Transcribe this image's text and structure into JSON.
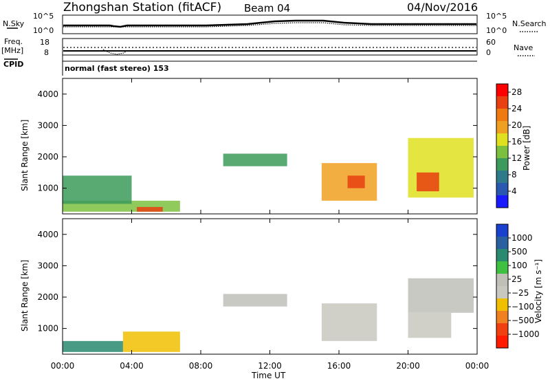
{
  "header": {
    "station": "Zhongshan Station (fitACF)",
    "beam": "Beam 04",
    "date": "04/Nov/2016"
  },
  "top_panel_labels": {
    "nsky": "N.Sky",
    "nsky_top": "10^5",
    "nsky_bottom": "10^0",
    "nsearch": "N.Search",
    "nsearch_top": "10^5",
    "nsearch_bottom": "10^0",
    "freq_label": "Freq.",
    "freq_unit": "[MHz]",
    "freq_top": "18",
    "freq_bottom": "8",
    "nave": "Nave",
    "nave_top": "60",
    "nave_bottom": "0",
    "cpid": "CPID",
    "mode": "normal (fast stereo) 153"
  },
  "colors": {
    "power_scale": [
      "#1a1aff",
      "#2a58b0",
      "#2f7a8a",
      "#3c9a5a",
      "#7cc040",
      "#e0e020",
      "#f0a020",
      "#ef7a10",
      "#e84010",
      "#ff0000"
    ],
    "velocity_scale": [
      "#ff1a00",
      "#f04010",
      "#f08020",
      "#f0c000",
      "#c8c8c0",
      "#c0c0b8",
      "#40c040",
      "#2a8a70",
      "#2a60a0",
      "#1a40d0"
    ]
  },
  "chart_data": [
    {
      "type": "heatmap",
      "title": "",
      "xlabel": "",
      "ylabel": "Slant Range [km]",
      "xlim": [
        "00:00",
        "24:00"
      ],
      "ylim": [
        180,
        4500
      ],
      "x_ticks": [
        "00:00",
        "04:00",
        "08:00",
        "12:00",
        "16:00",
        "20:00",
        "00:00"
      ],
      "y_ticks": [
        "1000",
        "2000",
        "3000",
        "4000"
      ],
      "colorbar": {
        "label": "Power [dB]",
        "ticks": [
          "4",
          "8",
          "12",
          "16",
          "20",
          "24",
          "28"
        ],
        "range": [
          0,
          30
        ]
      },
      "echo_regions": [
        {
          "t_start": 0.0,
          "t_end": 6.8,
          "r_min": 250,
          "r_max": 600,
          "value": 14
        },
        {
          "t_start": 4.3,
          "t_end": 5.8,
          "r_min": 250,
          "r_max": 400,
          "value": 26
        },
        {
          "t_start": 0.0,
          "t_end": 4.0,
          "r_min": 500,
          "r_max": 1400,
          "value": 10
        },
        {
          "t_start": 9.3,
          "t_end": 13.0,
          "r_min": 1700,
          "r_max": 2100,
          "value": 11
        },
        {
          "t_start": 15.0,
          "t_end": 18.2,
          "r_min": 600,
          "r_max": 1800,
          "value": 18
        },
        {
          "t_start": 16.5,
          "t_end": 17.5,
          "r_min": 1000,
          "r_max": 1400,
          "value": 25
        },
        {
          "t_start": 20.0,
          "t_end": 23.8,
          "r_min": 700,
          "r_max": 2600,
          "value": 16
        },
        {
          "t_start": 20.5,
          "t_end": 21.8,
          "r_min": 900,
          "r_max": 1500,
          "value": 24
        }
      ]
    },
    {
      "type": "heatmap",
      "title": "",
      "xlabel": "Time UT",
      "ylabel": "Slant Range [km]",
      "xlim": [
        "00:00",
        "24:00"
      ],
      "ylim": [
        180,
        4500
      ],
      "x_ticks": [
        "00:00",
        "04:00",
        "08:00",
        "12:00",
        "16:00",
        "20:00",
        "00:00"
      ],
      "y_ticks": [
        "1000",
        "2000",
        "3000",
        "4000"
      ],
      "colorbar": {
        "label": "Velocity [m s⁻¹]",
        "ticks": [
          "1000",
          "500",
          "100",
          "25",
          "−25",
          "−100",
          "−500",
          "−1000"
        ],
        "range": [
          -1000,
          1000
        ]
      },
      "echo_regions": [
        {
          "t_start": 0.0,
          "t_end": 3.5,
          "r_min": 250,
          "r_max": 600,
          "value": 400
        },
        {
          "t_start": 3.5,
          "t_end": 6.8,
          "r_min": 250,
          "r_max": 900,
          "value": -300
        },
        {
          "t_start": 9.3,
          "t_end": 13.0,
          "r_min": 1700,
          "r_max": 2100,
          "value": 0
        },
        {
          "t_start": 15.0,
          "t_end": 18.2,
          "r_min": 600,
          "r_max": 1800,
          "value": -200
        },
        {
          "t_start": 20.0,
          "t_end": 23.8,
          "r_min": 1500,
          "r_max": 2600,
          "value": 0
        },
        {
          "t_start": 20.0,
          "t_end": 22.5,
          "r_min": 700,
          "r_max": 1500,
          "value": -150
        }
      ]
    }
  ]
}
